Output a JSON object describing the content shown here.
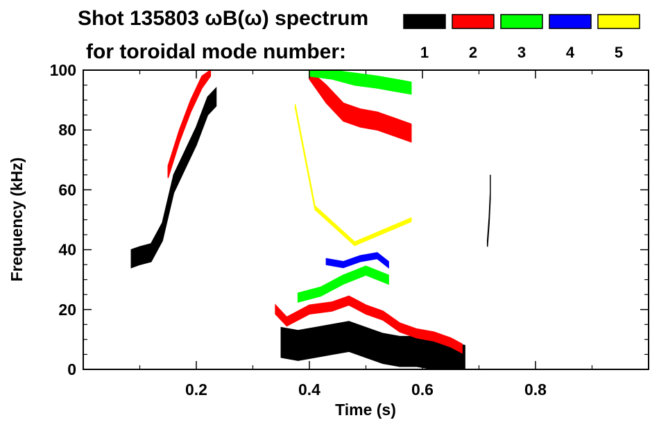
{
  "chart_data": {
    "type": "heatmap",
    "title": "Shot 135803 ωB(ω) spectrum",
    "subtitle": "for toroidal mode number:",
    "xlabel": "Time (s)",
    "ylabel": "Frequency (kHz)",
    "xlim": [
      0.0,
      1.0
    ],
    "ylim": [
      0,
      100
    ],
    "x_ticks": [
      {
        "value": 0.2,
        "label": "0.2"
      },
      {
        "value": 0.4,
        "label": "0.4"
      },
      {
        "value": 0.6,
        "label": "0.6"
      },
      {
        "value": 0.8,
        "label": "0.8"
      }
    ],
    "y_ticks": [
      {
        "value": 0,
        "label": "0"
      },
      {
        "value": 20,
        "label": "20"
      },
      {
        "value": 40,
        "label": "40"
      },
      {
        "value": 60,
        "label": "60"
      },
      {
        "value": 80,
        "label": "80"
      },
      {
        "value": 100,
        "label": "100"
      }
    ],
    "legend": {
      "placement": "top-right",
      "entries": [
        {
          "label": "1",
          "color": "#000000"
        },
        {
          "label": "2",
          "color": "#ff0000"
        },
        {
          "label": "3",
          "color": "#00ff00"
        },
        {
          "label": "4",
          "color": "#0000ff"
        },
        {
          "label": "5",
          "color": "#ffff00"
        }
      ]
    },
    "grid": false,
    "series": [
      {
        "mode": "1",
        "color": "#000000",
        "ridges": [
          {
            "t": [
              0.085,
              0.1,
              0.12,
              0.14,
              0.16,
              0.18,
              0.2,
              0.22,
              0.235
            ],
            "f": [
              37,
              38,
              39,
              46,
              62,
              70,
              78,
              88,
              91
            ],
            "halfwidth": 3
          },
          {
            "t": [
              0.35,
              0.38,
              0.41,
              0.44,
              0.47,
              0.5,
              0.53,
              0.56,
              0.59,
              0.62,
              0.65,
              0.675
            ],
            "f": [
              9,
              8,
              9,
              10,
              11,
              9,
              7,
              6,
              6,
              5,
              4,
              3
            ],
            "halfwidth": 5
          },
          {
            "t": [
              0.715,
              0.718,
              0.72,
              0.72
            ],
            "f": [
              42,
              50,
              58,
              64
            ],
            "halfwidth": 1
          }
        ]
      },
      {
        "mode": "2",
        "color": "#ff0000",
        "ridges": [
          {
            "t": [
              0.15,
              0.17,
              0.19,
              0.21,
              0.225
            ],
            "f": [
              66,
              78,
              88,
              96,
              100
            ],
            "halfwidth": 2
          },
          {
            "t": [
              0.34,
              0.36,
              0.4,
              0.44,
              0.47,
              0.5,
              0.53,
              0.56,
              0.59,
              0.62,
              0.65,
              0.67
            ],
            "f": [
              20,
              16,
              20,
              21,
              23,
              20,
              18,
              14,
              12,
              11,
              9,
              7
            ],
            "halfwidth": 1.5
          },
          {
            "t": [
              0.4,
              0.43,
              0.46,
              0.49,
              0.52,
              0.55,
              0.58
            ],
            "f": [
              100,
              92,
              86,
              84,
              83,
              81,
              79
            ],
            "halfwidth": 3
          }
        ]
      },
      {
        "mode": "3",
        "color": "#00ff00",
        "ridges": [
          {
            "t": [
              0.4,
              0.44,
              0.48,
              0.52,
              0.55,
              0.58
            ],
            "f": [
              100,
              99,
              97,
              96,
              95,
              94
            ],
            "halfwidth": 2
          },
          {
            "t": [
              0.38,
              0.42,
              0.46,
              0.5,
              0.54
            ],
            "f": [
              24,
              26,
              30,
              33,
              30
            ],
            "halfwidth": 1.5
          }
        ]
      },
      {
        "mode": "4",
        "color": "#0000ff",
        "ridges": [
          {
            "t": [
              0.43,
              0.46,
              0.49,
              0.52,
              0.54
            ],
            "f": [
              36,
              35,
              37,
              38,
              35
            ],
            "halfwidth": 1
          }
        ]
      },
      {
        "mode": "5",
        "color": "#ffff00",
        "ridges": [
          {
            "t": [
              0.375,
              0.41,
              0.48,
              0.58
            ],
            "f": [
              88,
              54,
              42,
              50
            ],
            "halfwidth": 0.6
          }
        ]
      }
    ]
  }
}
